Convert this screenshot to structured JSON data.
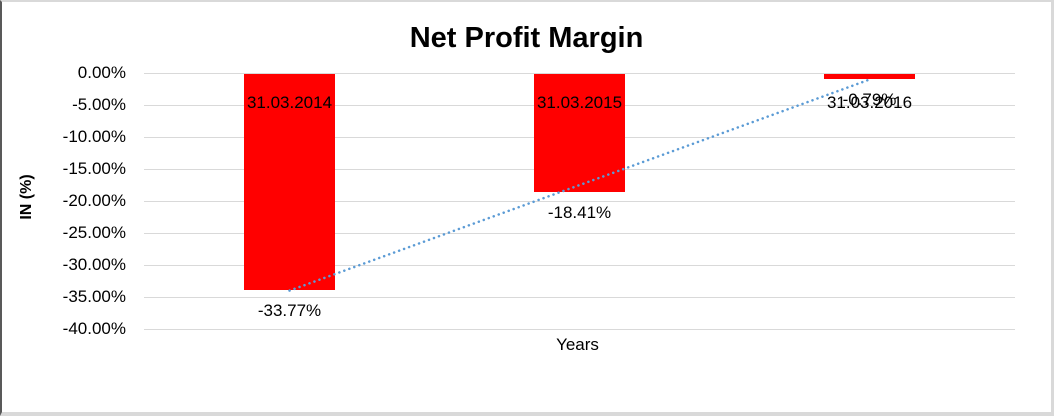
{
  "chart_data": {
    "type": "bar",
    "title": "Net Profit Margin",
    "xlabel": "Years",
    "ylabel": "IN (%)",
    "categories": [
      "31.03.2014",
      "31.03.2015",
      "31.03.2016"
    ],
    "values": [
      -33.77,
      -18.41,
      -0.79
    ],
    "data_labels": [
      "-33.77%",
      "-18.41%",
      "-0.79%"
    ],
    "yticks": [
      0,
      -5,
      -10,
      -15,
      -20,
      -25,
      -30,
      -35,
      -40
    ],
    "ytick_labels": [
      "0.00%",
      "-5.00%",
      "-10.00%",
      "-15.00%",
      "-20.00%",
      "-25.00%",
      "-30.00%",
      "-35.00%",
      "-40.00%"
    ],
    "ylim": [
      -40,
      0
    ],
    "grid": true,
    "legend": "none",
    "colors": {
      "bar": "#ff0000",
      "trendline": "#5b9bd5",
      "gridline": "#d9d9d9",
      "text": "#000000"
    },
    "trendline": {
      "type": "linear",
      "style": "dotted",
      "from_category": "31.03.2014",
      "to_category": "31.03.2016"
    }
  }
}
